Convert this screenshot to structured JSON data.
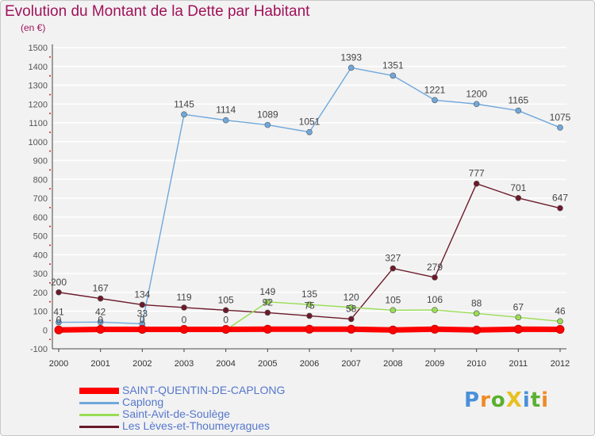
{
  "title": "Evolution du Montant de la Dette par Habitant",
  "subtitle": "(en €)",
  "logo": "ProXiti",
  "colors": {
    "background": "#f2f2f2",
    "title": "#a0125a",
    "grid": "#ffffff",
    "axis": "#444444",
    "label": "#555555",
    "tick_mark": "#d02020"
  },
  "chart_data": {
    "type": "line",
    "x": [
      "2000",
      "2001",
      "2002",
      "2003",
      "2004",
      "2005",
      "2006",
      "2007",
      "2008",
      "2009",
      "2010",
      "2011",
      "2012"
    ],
    "ylim": [
      -100,
      1500
    ],
    "yticks": [
      -100,
      0,
      100,
      200,
      300,
      400,
      500,
      600,
      700,
      800,
      900,
      1000,
      1100,
      1200,
      1300,
      1400,
      1500
    ],
    "grid": true,
    "legend_position": "bottom-left",
    "series": [
      {
        "name": "SAINT-QUENTIN-DE-CAPLONG",
        "color": "#ff0000",
        "values": [
          0,
          3,
          3,
          3,
          3,
          4,
          4,
          4,
          0,
          4,
          0,
          4,
          3
        ],
        "labels": []
      },
      {
        "name": "Caplong",
        "color": "#6fa8dc",
        "values": [
          41,
          42,
          33,
          1145,
          1114,
          1089,
          1051,
          1393,
          1351,
          1221,
          1200,
          1165,
          1075
        ],
        "labels": [
          "41",
          "42",
          "33",
          "1145",
          "1114",
          "1089",
          "1051",
          "1393",
          "1351",
          "1221",
          "1200",
          "1165",
          "1075"
        ]
      },
      {
        "name": "Saint-Avit-de-Soulège",
        "color": "#99dd55",
        "values": [
          0,
          0,
          0,
          0,
          0,
          149,
          135,
          120,
          105,
          106,
          88,
          67,
          46
        ],
        "labels": [
          "0",
          "0",
          "0",
          "0",
          "0",
          "149",
          "135",
          "120",
          "105",
          "106",
          "88",
          "67",
          "46"
        ]
      },
      {
        "name": "Les Lèves-et-Thoumeyragues",
        "color": "#6b1a2a",
        "values": [
          200,
          167,
          134,
          119,
          105,
          92,
          75,
          58,
          327,
          279,
          777,
          701,
          647
        ],
        "labels": [
          "200",
          "167",
          "134",
          "119",
          "105",
          "92",
          "75",
          "58",
          "327",
          "279",
          "777",
          "701",
          "647"
        ]
      }
    ],
    "overlay_labels": {
      "note": "",
      "points": []
    }
  }
}
